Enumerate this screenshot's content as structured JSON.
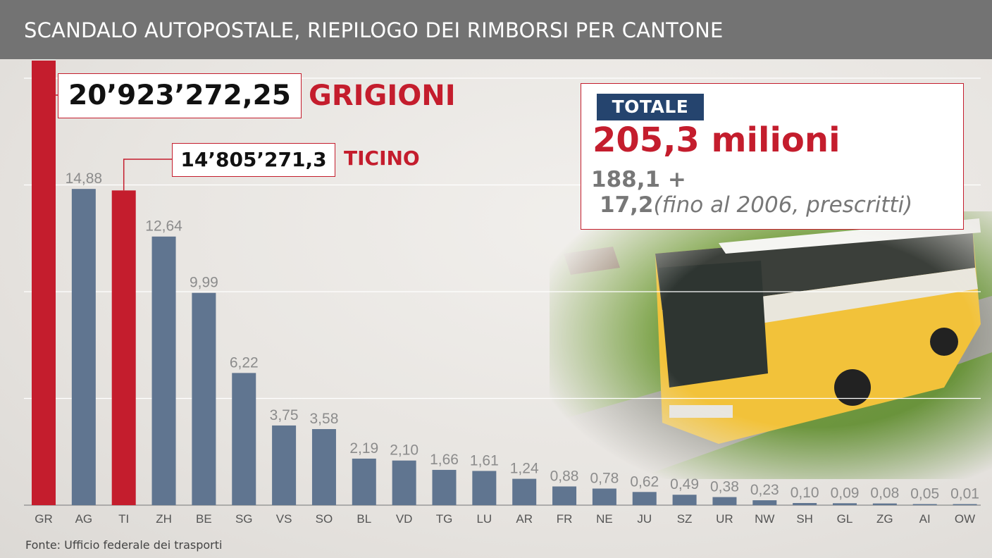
{
  "header": {
    "title": "SCANDALO AUTOPOSTALE, RIEPILOGO DEI RIMBORSI PER CANTONE"
  },
  "callouts": {
    "grigioni": {
      "value": "20’923’272,25",
      "name": "GRIGIONI"
    },
    "ticino": {
      "value": "14’805’271,3",
      "name": "TICINO"
    }
  },
  "total": {
    "badge": "TOTALE",
    "value": "205,3 milioni",
    "line1": "188,1 +",
    "line2_num": "17,2",
    "line2_note": "(fino al 2006, prescritti)"
  },
  "source": "Fonte: Ufficio federale dei trasporti",
  "colors": {
    "highlight": "#c41d2d",
    "bar": "#607590",
    "badge": "#25446e",
    "header": "#737373"
  },
  "chart_data": {
    "type": "bar",
    "title": "SCANDALO AUTOPOSTALE, RIEPILOGO DEI RIMBORSI PER CANTONE",
    "categories": [
      "GR",
      "AG",
      "TI",
      "ZH",
      "BE",
      "SG",
      "VS",
      "SO",
      "BL",
      "VD",
      "TG",
      "LU",
      "AR",
      "FR",
      "NE",
      "JU",
      "SZ",
      "UR",
      "NW",
      "SH",
      "GL",
      "ZG",
      "AI",
      "OW"
    ],
    "values": [
      20.92,
      14.88,
      14.81,
      12.64,
      9.99,
      6.22,
      3.75,
      3.58,
      2.19,
      2.1,
      1.66,
      1.61,
      1.24,
      0.88,
      0.78,
      0.62,
      0.49,
      0.38,
      0.23,
      0.1,
      0.09,
      0.08,
      0.05,
      0.01
    ],
    "labels": [
      "",
      "14,88",
      "",
      "12,64",
      "9,99",
      "6,22",
      "3,75",
      "3,58",
      "2,19",
      "2,10",
      "1,66",
      "1,61",
      "1,24",
      "0,88",
      "0,78",
      "0,62",
      "0,49",
      "0,38",
      "0,23",
      "0,10",
      "0,09",
      "0,08",
      "0,05",
      "0,01"
    ],
    "highlighted": [
      "GR",
      "TI"
    ],
    "ylim": [
      0,
      21
    ],
    "grid": true,
    "gridlines": [
      0,
      5,
      10,
      15,
      20
    ],
    "xlabel": "",
    "ylabel": ""
  }
}
